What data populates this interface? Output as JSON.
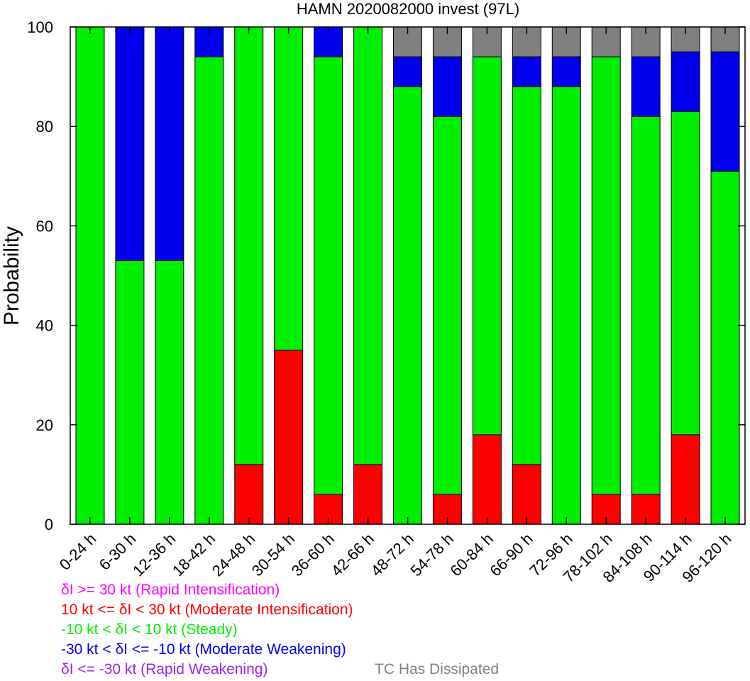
{
  "chart_data": {
    "type": "bar",
    "stacked": true,
    "title": "HAMN 2020082000 invest (97L)",
    "xlabel": "",
    "ylabel": "Probability",
    "ylim": [
      0,
      100
    ],
    "yticks": [
      0,
      20,
      40,
      60,
      80,
      100
    ],
    "grid": false,
    "categories": [
      "0-24 h",
      "6-30 h",
      "12-36 h",
      "18-42 h",
      "24-48 h",
      "30-54 h",
      "36-60 h",
      "42-66 h",
      "48-72 h",
      "54-78 h",
      "60-84 h",
      "66-90 h",
      "72-96 h",
      "78-102 h",
      "84-108 h",
      "90-114 h",
      "96-120 h"
    ],
    "series": [
      {
        "key": "ri",
        "color": "#ff00ff",
        "values": [
          0,
          0,
          0,
          0,
          0,
          0,
          0,
          0,
          0,
          0,
          0,
          0,
          0,
          0,
          0,
          0,
          0
        ]
      },
      {
        "key": "mi",
        "color": "#ff0000",
        "values": [
          0,
          0,
          0,
          0,
          12,
          35,
          6,
          12,
          0,
          6,
          18,
          12,
          0,
          6,
          6,
          18,
          0
        ]
      },
      {
        "key": "steady",
        "color": "#00ee00",
        "values": [
          100,
          53,
          53,
          94,
          88,
          65,
          88,
          88,
          88,
          76,
          76,
          76,
          88,
          88,
          76,
          65,
          71
        ]
      },
      {
        "key": "mw",
        "color": "#0000ee",
        "values": [
          0,
          47,
          47,
          6,
          0,
          0,
          6,
          0,
          6,
          12,
          0,
          6,
          6,
          0,
          12,
          12,
          24
        ]
      },
      {
        "key": "rw",
        "color": "#a020f0",
        "values": [
          0,
          0,
          0,
          0,
          0,
          0,
          0,
          0,
          0,
          0,
          0,
          0,
          0,
          0,
          0,
          0,
          0
        ]
      },
      {
        "key": "dissipated",
        "color": "#808080",
        "values": [
          0,
          0,
          0,
          0,
          0,
          0,
          0,
          0,
          6,
          6,
          6,
          6,
          6,
          6,
          6,
          5,
          5
        ]
      }
    ]
  },
  "legend": [
    {
      "text": "δI >= 30 kt (Rapid Intensification)",
      "color": "#ff00ff"
    },
    {
      "text": "10 kt <= δI < 30 kt (Moderate Intensification)",
      "color": "#ff0000"
    },
    {
      "text": "-10 kt < δI < 10 kt (Steady)",
      "color": "#00ee00"
    },
    {
      "text": "-30 kt < δI <= -10 kt (Moderate Weakening)",
      "color": "#0000ee"
    },
    {
      "text": "δI <= -30 kt (Rapid Weakening)",
      "color": "#a020f0"
    },
    {
      "text": "TC Has Dissipated",
      "color": "#808080"
    }
  ]
}
